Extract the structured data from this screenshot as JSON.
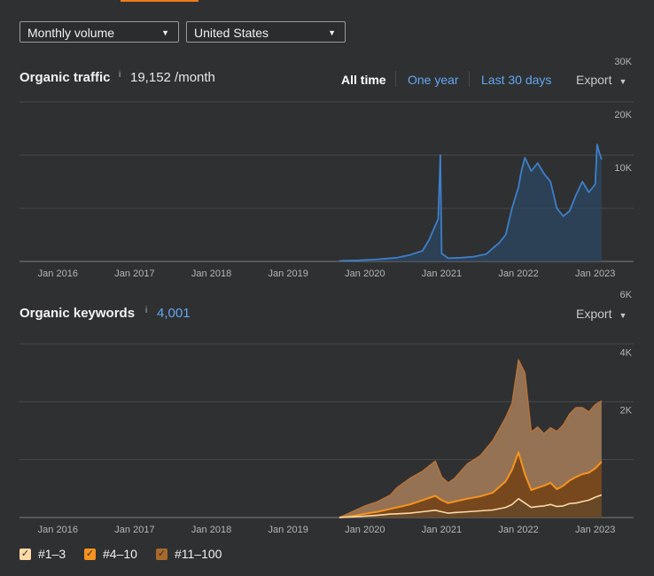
{
  "controls": {
    "volume_select": "Monthly volume",
    "country_select": "United States"
  },
  "traffic": {
    "title": "Organic traffic",
    "info": "i",
    "value": "19,152 /month",
    "ranges": [
      "All time",
      "One year",
      "Last 30 days"
    ],
    "active_range": "All time",
    "export_label": "Export"
  },
  "keywords": {
    "title": "Organic keywords",
    "info": "i",
    "value": "4,001",
    "export_label": "Export"
  },
  "legend": [
    {
      "label": "#1–3",
      "color": "#fdd9a6",
      "checked": true
    },
    {
      "label": "#4–10",
      "color": "#f7931e",
      "checked": true
    },
    {
      "label": "#11–100",
      "color": "#a86a2c",
      "checked": true
    }
  ],
  "colors": {
    "traffic_line": "#3d7fc8",
    "traffic_fill": "#2c4763",
    "grid": "#48494c",
    "tick": "#b5b5b5",
    "accent": "#f07a1a"
  },
  "chart_data": [
    {
      "type": "area",
      "name": "organic-traffic",
      "x_tick_labels": [
        "Jan 2016",
        "Jan 2017",
        "Jan 2018",
        "Jan 2019",
        "Jan 2020",
        "Jan 2021",
        "Jan 2022",
        "Jan 2023"
      ],
      "y_tick_labels": [
        "10K",
        "20K",
        "30K"
      ],
      "ylim": [
        0,
        30000
      ],
      "xlim": [
        "2015-07",
        "2023-07"
      ],
      "grid": true,
      "series": [
        {
          "x": [
            "2019-09",
            "2019-12",
            "2020-03",
            "2020-06",
            "2020-08",
            "2020-10",
            "2020-11",
            "2020-12-15",
            "2020-12-25",
            "2021-01",
            "2021-02",
            "2021-04",
            "2021-06",
            "2021-08",
            "2021-09",
            "2021-10",
            "2021-11",
            "2021-12",
            "2022-01",
            "2022-01-15",
            "2022-02",
            "2022-03",
            "2022-04",
            "2022-05",
            "2022-06",
            "2022-07",
            "2022-08",
            "2022-09",
            "2022-10",
            "2022-11",
            "2022-12",
            "2023-01",
            "2023-01-10",
            "2023-01-20",
            "2023-02"
          ],
          "values": [
            100,
            200,
            400,
            700,
            1200,
            2000,
            4000,
            8000,
            20000,
            1500,
            600,
            700,
            900,
            1400,
            2500,
            3500,
            5000,
            10000,
            14000,
            17000,
            19500,
            17000,
            18500,
            16500,
            15000,
            10000,
            8500,
            9500,
            12500,
            15000,
            13000,
            14500,
            22000,
            20500,
            19200
          ]
        }
      ]
    },
    {
      "type": "area",
      "name": "organic-keywords",
      "x_tick_labels": [
        "Jan 2016",
        "Jan 2017",
        "Jan 2018",
        "Jan 2019",
        "Jan 2020",
        "Jan 2021",
        "Jan 2022",
        "Jan 2023"
      ],
      "y_tick_labels": [
        "2K",
        "4K",
        "6K"
      ],
      "ylim": [
        0,
        6000
      ],
      "xlim": [
        "2015-07",
        "2023-07"
      ],
      "grid": true,
      "stacked": true,
      "x": [
        "2019-09",
        "2019-11",
        "2020-01",
        "2020-03",
        "2020-05",
        "2020-06",
        "2020-08",
        "2020-10",
        "2020-12",
        "2021-01",
        "2021-02",
        "2021-03",
        "2021-05",
        "2021-07",
        "2021-09",
        "2021-11",
        "2021-12",
        "2022-01",
        "2022-02",
        "2022-03",
        "2022-04",
        "2022-05",
        "2022-06",
        "2022-07",
        "2022-08",
        "2022-09",
        "2022-10",
        "2022-11",
        "2022-12",
        "2023-01",
        "2023-02"
      ],
      "series": [
        {
          "name": "#1–3",
          "values": [
            0,
            20,
            50,
            80,
            120,
            130,
            150,
            200,
            250,
            200,
            150,
            170,
            200,
            230,
            260,
            350,
            450,
            650,
            500,
            350,
            380,
            400,
            450,
            380,
            400,
            480,
            500,
            550,
            600,
            700,
            780
          ]
        },
        {
          "name": "#4–10",
          "values": [
            0,
            30,
            80,
            120,
            180,
            220,
            300,
            400,
            500,
            400,
            350,
            380,
            450,
            500,
            600,
            900,
            1200,
            1600,
            1000,
            600,
            650,
            700,
            750,
            600,
            700,
            800,
            900,
            950,
            950,
            1000,
            1150
          ]
        },
        {
          "name": "#11–100",
          "values": [
            0,
            150,
            270,
            350,
            480,
            680,
            900,
            1000,
            1200,
            800,
            700,
            800,
            1200,
            1400,
            1800,
            2200,
            2300,
            3200,
            3500,
            2000,
            2100,
            1800,
            1900,
            2000,
            2100,
            2300,
            2400,
            2300,
            2100,
            2200,
            2100
          ]
        }
      ]
    }
  ]
}
